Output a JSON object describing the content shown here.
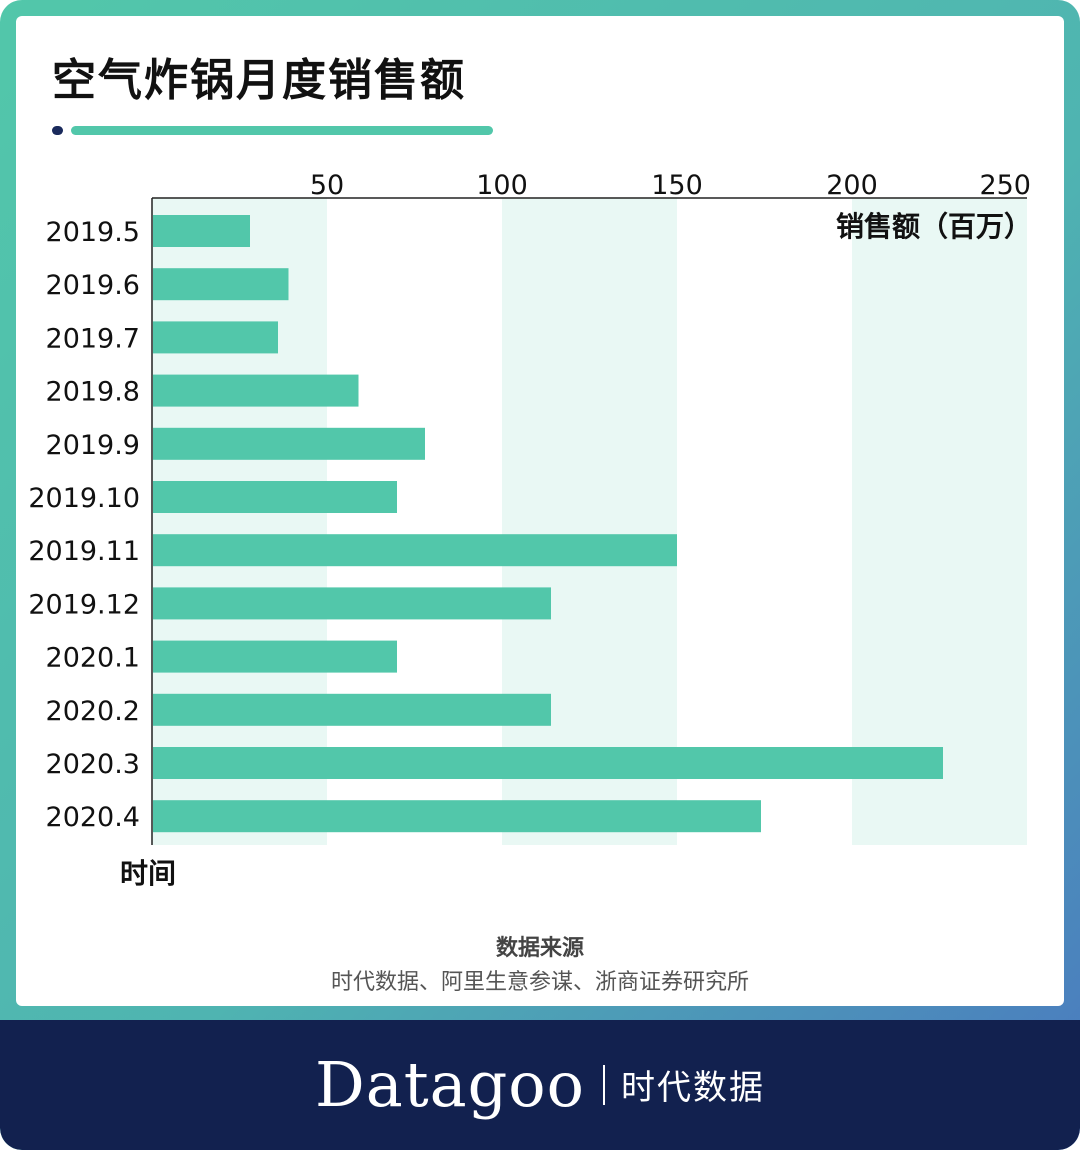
{
  "title": "空气炸锅月度销售额",
  "source_title": "数据来源",
  "source_text": "时代数据、阿里生意参谋、浙商证券研究所",
  "brand": {
    "name": "Datagoo",
    "cn": "时代数据"
  },
  "colors": {
    "bar": "#52c7aa",
    "band": "#e9f8f4",
    "axis": "#222222",
    "footer": "#12214f",
    "accent": "#1a2a5c"
  },
  "chart_data": {
    "type": "bar",
    "orientation": "horizontal",
    "title": "空气炸锅月度销售额",
    "xlabel": "销售额（百万）",
    "ylabel": "时间",
    "xlim": [
      0,
      250
    ],
    "xticks": [
      50,
      100,
      150,
      200,
      250
    ],
    "xaxis_position": "top",
    "grid": "alternating vertical bands",
    "categories": [
      "2019.5",
      "2019.6",
      "2019.7",
      "2019.8",
      "2019.9",
      "2019.10",
      "2019.11",
      "2019.12",
      "2020.1",
      "2020.2",
      "2020.3",
      "2020.4"
    ],
    "values": [
      28,
      39,
      36,
      59,
      78,
      70,
      150,
      114,
      70,
      114,
      226,
      174
    ]
  }
}
